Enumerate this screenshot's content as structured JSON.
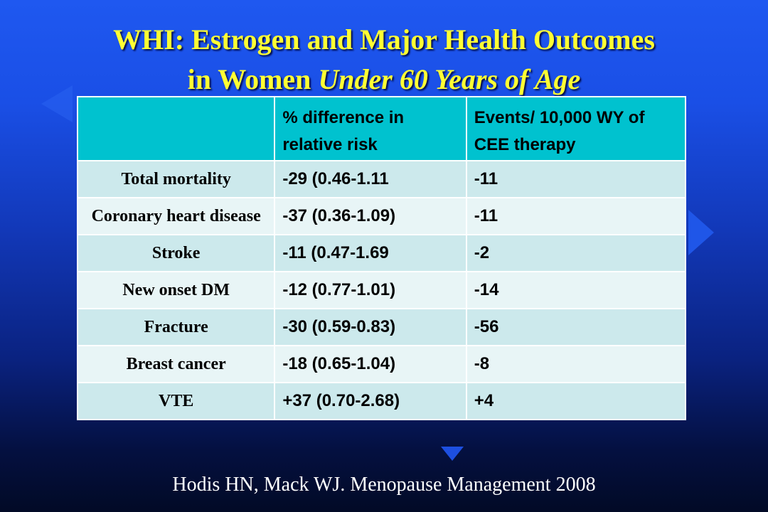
{
  "title": {
    "line1": "WHI: Estrogen and Major Health Outcomes",
    "line2_prefix": "in Women ",
    "line2_italic": "Under 60 Years of Age"
  },
  "table": {
    "headers": [
      "",
      "% difference in relative risk",
      "Events/ 10,000 WY of CEE therapy"
    ],
    "rows": [
      {
        "label": "Total mortality",
        "rr": "-29 (0.46-1.11",
        "events": "-11"
      },
      {
        "label": "Coronary heart disease",
        "rr": "-37 (0.36-1.09)",
        "events": "-11"
      },
      {
        "label": "Stroke",
        "rr": "-11 (0.47-1.69",
        "events": "-2"
      },
      {
        "label": "New onset DM",
        "rr": "-12 (0.77-1.01)",
        "events": "-14"
      },
      {
        "label": "Fracture",
        "rr": "-30 (0.59-0.83)",
        "events": "-56"
      },
      {
        "label": "Breast cancer",
        "rr": "-18 (0.65-1.04)",
        "events": "-8"
      },
      {
        "label": "VTE",
        "rr": "+37 (0.70-2.68)",
        "events": "+4"
      }
    ]
  },
  "citation": "Hodis HN, Mack WJ.  Menopause Management  2008",
  "colors": {
    "background_top": "#1f58f0",
    "background_bottom": "#020a26",
    "title": "#ffff33",
    "header_fill": "#00c2cf",
    "row_fill_a": "#cce9ec",
    "row_fill_b": "#e8f5f6"
  }
}
